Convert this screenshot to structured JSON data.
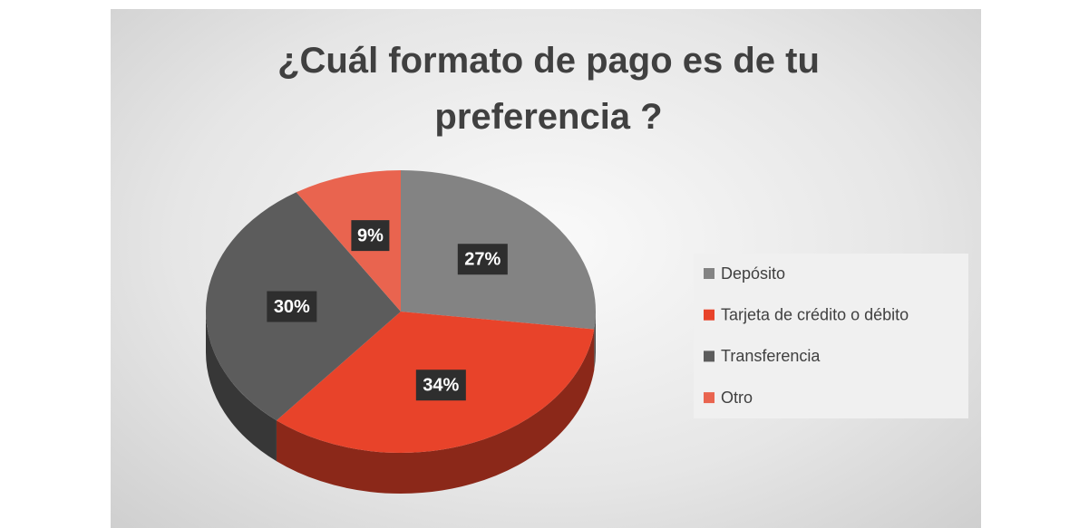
{
  "chart_data": {
    "type": "pie3d",
    "title": "¿Cuál formato de pago es de tu preferencia ?",
    "categories": [
      "Depósito",
      "Tarjeta de crédito o débito",
      "Transferencia",
      "Otro"
    ],
    "values": [
      27,
      34,
      30,
      9
    ],
    "value_labels": [
      "27%",
      "34%",
      "30%",
      "9%"
    ],
    "colors": [
      "#838383",
      "#e8432a",
      "#5c5c5c",
      "#e9644f"
    ],
    "legend": "right"
  }
}
